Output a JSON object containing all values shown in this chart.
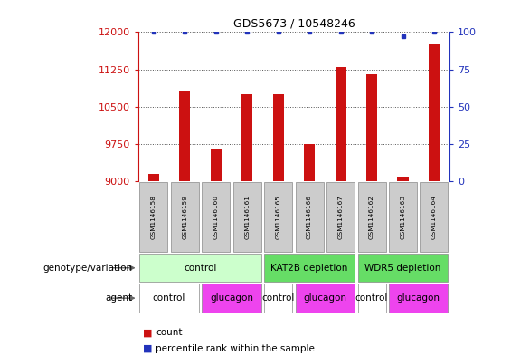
{
  "title": "GDS5673 / 10548246",
  "samples": [
    "GSM1146158",
    "GSM1146159",
    "GSM1146160",
    "GSM1146161",
    "GSM1146165",
    "GSM1146166",
    "GSM1146167",
    "GSM1146162",
    "GSM1146163",
    "GSM1146164"
  ],
  "counts": [
    9150,
    10800,
    9650,
    10750,
    10750,
    9750,
    11300,
    11150,
    9100,
    11750
  ],
  "percentiles": [
    100,
    100,
    100,
    100,
    100,
    100,
    100,
    100,
    97,
    100
  ],
  "ylim_left": [
    9000,
    12000
  ],
  "ylim_right": [
    0,
    100
  ],
  "yticks_left": [
    9000,
    9750,
    10500,
    11250,
    12000
  ],
  "yticks_right": [
    0,
    25,
    50,
    75,
    100
  ],
  "bar_color": "#cc1111",
  "dot_color": "#2233bb",
  "grid_color": "#555555",
  "sample_box_color": "#cccccc",
  "geno_regions": [
    {
      "label": "control",
      "start": 0,
      "end": 3,
      "color": "#ccffcc"
    },
    {
      "label": "KAT2B depletion",
      "start": 4,
      "end": 6,
      "color": "#66dd66"
    },
    {
      "label": "WDR5 depletion",
      "start": 7,
      "end": 9,
      "color": "#66dd66"
    }
  ],
  "agent_regions": [
    {
      "label": "control",
      "start": 0,
      "end": 1,
      "color": "#ffffff"
    },
    {
      "label": "glucagon",
      "start": 2,
      "end": 3,
      "color": "#ee44ee"
    },
    {
      "label": "control",
      "start": 4,
      "end": 4,
      "color": "#ffffff"
    },
    {
      "label": "glucagon",
      "start": 5,
      "end": 6,
      "color": "#ee44ee"
    },
    {
      "label": "control",
      "start": 7,
      "end": 7,
      "color": "#ffffff"
    },
    {
      "label": "glucagon",
      "start": 8,
      "end": 9,
      "color": "#ee44ee"
    }
  ],
  "legend_count_label": "count",
  "legend_pct_label": "percentile rank within the sample",
  "genotype_row_label": "genotype/variation",
  "agent_row_label": "agent",
  "bar_width": 0.35
}
